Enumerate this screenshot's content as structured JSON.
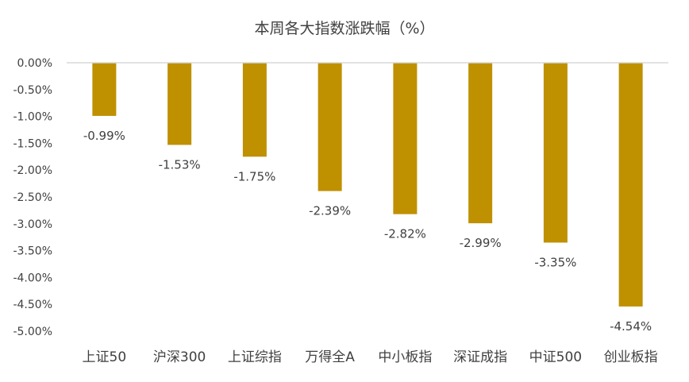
{
  "chart_data": {
    "type": "bar",
    "title": "本周各大指数涨跌幅（%）",
    "categories": [
      "上证50",
      "沪深300",
      "上证综指",
      "万得全A",
      "中小板指",
      "深证成指",
      "中证500",
      "创业板指"
    ],
    "values": [
      -0.99,
      -1.53,
      -1.75,
      -2.39,
      -2.82,
      -2.99,
      -3.35,
      -4.54
    ],
    "data_labels": [
      "-0.99%",
      "-1.53%",
      "-1.75%",
      "-2.39%",
      "-2.82%",
      "-2.99%",
      "-3.35%",
      "-4.54%"
    ],
    "yticks": [
      "0.00%",
      "-0.50%",
      "-1.00%",
      "-1.50%",
      "-2.00%",
      "-2.50%",
      "-3.00%",
      "-3.50%",
      "-4.00%",
      "-4.50%",
      "-5.00%"
    ],
    "ylim": [
      -5,
      0
    ],
    "xlabel": "",
    "ylabel": "",
    "legend": "none",
    "grid": false,
    "bar_color": "#BF9000",
    "axis_color": "#D9D9D9",
    "text_color": "#404040"
  }
}
